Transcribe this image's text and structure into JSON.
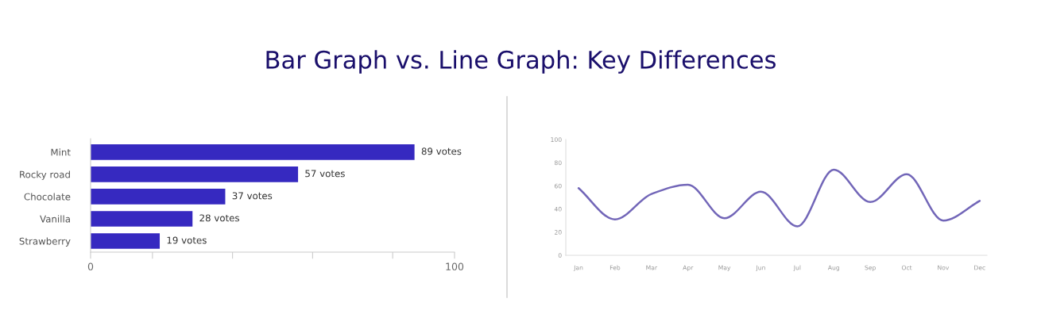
{
  "chart_data": [
    {
      "type": "bar",
      "title": "Bar Graph vs. Line Graph: Key Differences",
      "orientation": "horizontal",
      "categories": [
        "Mint",
        "Rocky road",
        "Chocolate",
        "Vanilla",
        "Strawberry"
      ],
      "values": [
        89,
        57,
        37,
        28,
        19
      ],
      "value_labels": [
        "89 votes",
        "57 votes",
        "37 votes",
        "28 votes",
        "19 votes"
      ],
      "color": "#3629c0",
      "xlim": [
        0,
        100
      ],
      "xticks": [
        0,
        {
          "value": 17,
          "label": null
        },
        {
          "value": 39,
          "label": null
        },
        {
          "value": 61,
          "label": null
        },
        {
          "value": 83,
          "label": null
        },
        100
      ],
      "grid": false,
      "legend": false
    },
    {
      "type": "line",
      "categories": [
        "Jan",
        "Feb",
        "Mar",
        "Apr",
        "May",
        "Jun",
        "Jul",
        "Aug",
        "Sep",
        "Oct",
        "Nov",
        "Dec"
      ],
      "values": [
        58,
        31,
        53,
        61,
        32,
        55,
        25,
        74,
        46,
        70,
        30,
        47
      ],
      "color": "#7266b8",
      "ylim": [
        0,
        100
      ],
      "yticks": [
        0,
        20,
        40,
        60,
        80,
        100
      ],
      "grid": false,
      "legend": false,
      "marker": "none",
      "line_style": "solid"
    }
  ]
}
